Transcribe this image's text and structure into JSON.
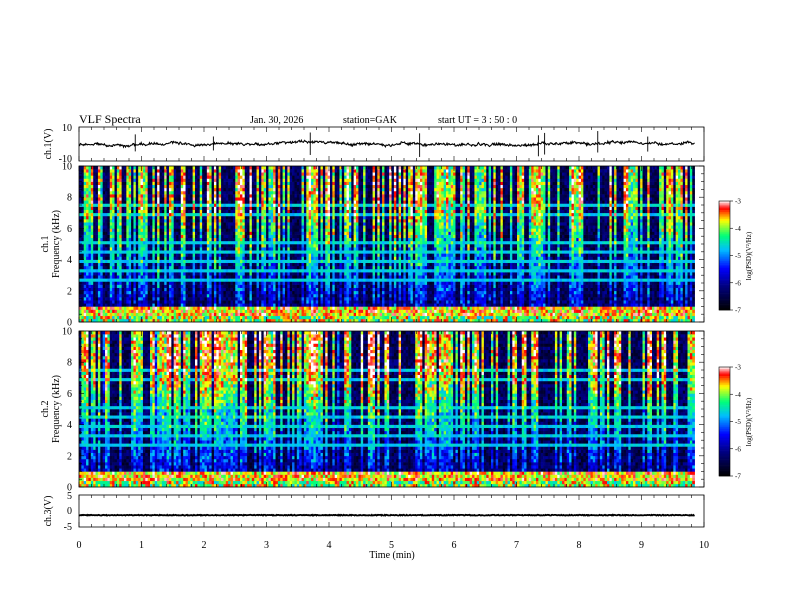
{
  "header": {
    "title": "VLF  Spectra",
    "date": "Jan.  30,  2026",
    "station": "station=GAK",
    "start": "start  UT  =    3   : 50 : 0"
  },
  "colors": {
    "background": "#ffffff",
    "axis": "#000000",
    "colormap": [
      "#000000",
      "#00008b",
      "#0000ff",
      "#00bfff",
      "#00ff7f",
      "#ffff00",
      "#ff0000",
      "#ffffff"
    ]
  },
  "chart_data": [
    {
      "type": "line",
      "name": "ch1-waveform",
      "ylabel": "ch.1(V)",
      "ylim": [
        -10,
        10
      ],
      "yticks": [
        "10",
        "-10"
      ],
      "xlim": [
        0,
        10
      ],
      "mean_value": 0,
      "noise_amplitude": 1.2
    },
    {
      "type": "heatmap",
      "name": "ch1-spectrogram",
      "ylabel_line1": "ch.1",
      "ylabel_line2": "Frequency  (kHz)",
      "ylim": [
        0,
        10
      ],
      "yticks": [
        "0",
        "2",
        "4",
        "6",
        "8",
        "10"
      ],
      "xlim": [
        0,
        10
      ],
      "data_end_min": 9.85,
      "colorbar": {
        "label": "log(PSD)(V²/Hz)",
        "range": [
          -7,
          -3
        ],
        "ticks": [
          "-3",
          "-4",
          "-5",
          "-6",
          "-7"
        ]
      }
    },
    {
      "type": "heatmap",
      "name": "ch2-spectrogram",
      "ylabel_line1": "ch.2",
      "ylabel_line2": "Frequency  (kHz)",
      "ylim": [
        0,
        10
      ],
      "yticks": [
        "0",
        "2",
        "4",
        "6",
        "8",
        "10"
      ],
      "xlim": [
        0,
        10
      ],
      "data_end_min": 9.85,
      "colorbar": {
        "label": "log(PSD)(V²/Hz)",
        "range": [
          -7,
          -3
        ],
        "ticks": [
          "-3",
          "-4",
          "-5",
          "-6",
          "-7"
        ]
      }
    },
    {
      "type": "line",
      "name": "ch3-waveform",
      "ylabel": "ch.3(V)",
      "ylim": [
        -5,
        5
      ],
      "yticks": [
        "5",
        "0",
        "-5"
      ],
      "xlim": [
        0,
        10
      ],
      "mean_value": -1.3
    }
  ],
  "x_axis": {
    "label": "Time  (min)",
    "ticks": [
      "0",
      "1",
      "2",
      "3",
      "4",
      "5",
      "6",
      "7",
      "8",
      "9",
      "10"
    ]
  }
}
